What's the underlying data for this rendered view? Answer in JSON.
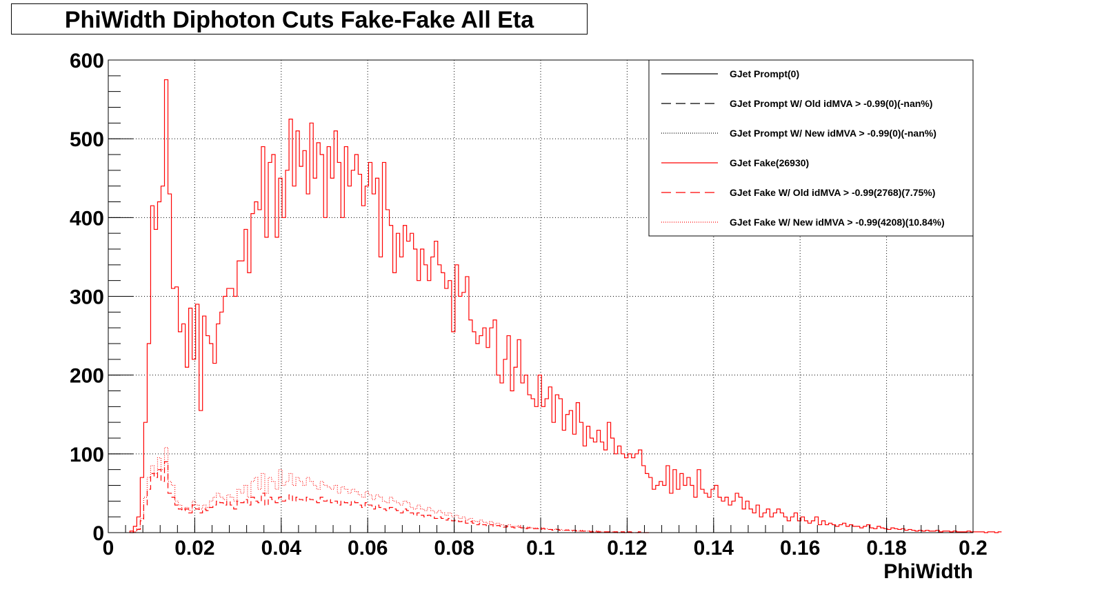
{
  "chart_data": {
    "type": "histogram",
    "title": "PhiWidth Diphoton Cuts Fake-Fake All Eta",
    "xlabel": "PhiWidth",
    "ylabel": "",
    "xlim": [
      0,
      0.2
    ],
    "ylim": [
      0,
      600
    ],
    "grid": true,
    "legend_position": "top-right",
    "x_ticks": [
      "0",
      "0.02",
      "0.04",
      "0.06",
      "0.08",
      "0.1",
      "0.12",
      "0.14",
      "0.16",
      "0.18",
      "0.2"
    ],
    "y_ticks": [
      "0",
      "100",
      "200",
      "300",
      "400",
      "500",
      "600"
    ],
    "bin_start": 0.005,
    "bin_width": 0.0008,
    "series": [
      {
        "name": "GJet Prompt(0)",
        "color": "#000000",
        "dash": "solid",
        "values": []
      },
      {
        "name": "GJet Prompt W/ Old idMVA > -0.99(0)(-nan%)",
        "color": "#000000",
        "dash": "dashed",
        "values": []
      },
      {
        "name": "GJet Prompt W/ New idMVA > -0.99(0)(-nan%)",
        "color": "#000000",
        "dash": "dotted",
        "values": []
      },
      {
        "name": "GJet Fake(26930)",
        "color": "#ff0000",
        "dash": "solid",
        "values": [
          2,
          8,
          20,
          70,
          140,
          240,
          415,
          385,
          420,
          440,
          575,
          430,
          310,
          312,
          255,
          265,
          210,
          285,
          220,
          290,
          155,
          275,
          250,
          240,
          215,
          265,
          280,
          300,
          310,
          310,
          300,
          345,
          345,
          385,
          330,
          405,
          420,
          410,
          490,
          375,
          470,
          480,
          375,
          450,
          400,
          460,
          525,
          440,
          510,
          465,
          485,
          430,
          520,
          450,
          495,
          480,
          400,
          490,
          450,
          510,
          470,
          400,
          490,
          440,
          460,
          480,
          455,
          415,
          440,
          470,
          430,
          450,
          350,
          470,
          410,
          390,
          330,
          380,
          350,
          390,
          370,
          380,
          360,
          320,
          360,
          340,
          320,
          350,
          370,
          340,
          330,
          310,
          320,
          255,
          340,
          300,
          305,
          325,
          270,
          255,
          240,
          250,
          260,
          235,
          260,
          270,
          200,
          190,
          220,
          250,
          180,
          210,
          245,
          190,
          200,
          175,
          170,
          160,
          200,
          160,
          170,
          185,
          140,
          175,
          170,
          130,
          150,
          155,
          125,
          165,
          140,
          110,
          135,
          120,
          115,
          130,
          115,
          105,
          140,
          120,
          100,
          110,
          100,
          95,
          100,
          95,
          100,
          105,
          85,
          75,
          70,
          55,
          60,
          65,
          60,
          85,
          50,
          80,
          55,
          75,
          60,
          70,
          60,
          45,
          80,
          55,
          50,
          45,
          55,
          60,
          45,
          40,
          45,
          35,
          40,
          50,
          45,
          30,
          40,
          30,
          25,
          35,
          20,
          25,
          30,
          20,
          25,
          30,
          25,
          20,
          15,
          20,
          25,
          15,
          20,
          15,
          12,
          15,
          20,
          10,
          15,
          10,
          12,
          10,
          8,
          10,
          12,
          8,
          10,
          8,
          8,
          6,
          8,
          10,
          6,
          5,
          8,
          6,
          5,
          4,
          6,
          5,
          4,
          5,
          3,
          4,
          3,
          2,
          3,
          2,
          3,
          2,
          2,
          3,
          1,
          2,
          2,
          1,
          2,
          1,
          1,
          1,
          2,
          1,
          1,
          1,
          1,
          0,
          1,
          1,
          0,
          1
        ]
      },
      {
        "name": "GJet Fake W/ Old idMVA > -0.99(2768)(7.75%)",
        "color": "#ff0000",
        "dash": "dashed",
        "values": [
          0,
          1,
          4,
          15,
          35,
          55,
          75,
          70,
          80,
          65,
          90,
          50,
          45,
          35,
          30,
          28,
          30,
          25,
          35,
          30,
          25,
          30,
          28,
          32,
          35,
          40,
          38,
          35,
          40,
          35,
          30,
          40,
          38,
          42,
          35,
          45,
          40,
          38,
          50,
          35,
          45,
          42,
          38,
          45,
          40,
          42,
          48,
          40,
          45,
          42,
          40,
          45,
          42,
          40,
          38,
          45,
          40,
          42,
          38,
          40,
          35,
          40,
          38,
          35,
          40,
          38,
          35,
          32,
          38,
          35,
          30,
          35,
          32,
          30,
          28,
          32,
          30,
          28,
          25,
          30,
          28,
          25,
          22,
          25,
          22,
          20,
          22,
          20,
          18,
          20,
          18,
          16,
          18,
          15,
          16,
          14,
          15,
          12,
          14,
          12,
          10,
          12,
          10,
          9,
          10,
          8,
          9,
          8,
          7,
          8,
          7,
          6,
          7,
          6,
          5,
          6,
          5,
          5,
          4,
          5,
          4,
          4,
          3,
          4,
          3,
          3,
          3,
          2,
          3,
          2,
          2,
          2,
          2,
          1,
          2,
          1,
          1,
          1,
          1,
          1,
          1,
          0,
          1,
          0,
          1,
          0,
          0,
          1,
          0,
          0
        ]
      },
      {
        "name": "GJet Fake W/ New idMVA > -0.99(4208)(10.84%)",
        "color": "#ff0000",
        "dash": "dotted",
        "values": [
          0,
          1,
          5,
          18,
          45,
          70,
          85,
          75,
          95,
          80,
          108,
          65,
          60,
          40,
          35,
          30,
          32,
          28,
          40,
          35,
          30,
          35,
          32,
          40,
          45,
          50,
          45,
          42,
          48,
          45,
          40,
          55,
          50,
          60,
          45,
          65,
          70,
          55,
          75,
          50,
          70,
          65,
          55,
          80,
          60,
          65,
          75,
          60,
          70,
          65,
          60,
          70,
          65,
          60,
          55,
          65,
          60,
          58,
          55,
          60,
          50,
          58,
          55,
          50,
          55,
          52,
          48,
          45,
          52,
          48,
          42,
          48,
          45,
          40,
          38,
          45,
          40,
          38,
          35,
          40,
          38,
          32,
          30,
          35,
          30,
          28,
          32,
          28,
          25,
          28,
          25,
          22,
          25,
          20,
          22,
          18,
          20,
          16,
          18,
          15,
          14,
          16,
          13,
          12,
          14,
          11,
          12,
          10,
          9,
          10,
          8,
          8,
          9,
          7,
          6,
          7,
          6,
          6,
          5,
          6,
          5,
          4,
          4,
          5,
          4,
          3,
          4,
          3,
          3,
          2,
          3,
          2,
          2,
          2,
          1,
          2,
          1,
          1,
          1,
          1,
          1,
          0,
          1,
          0,
          1,
          0,
          0,
          1,
          0,
          0
        ]
      }
    ]
  }
}
